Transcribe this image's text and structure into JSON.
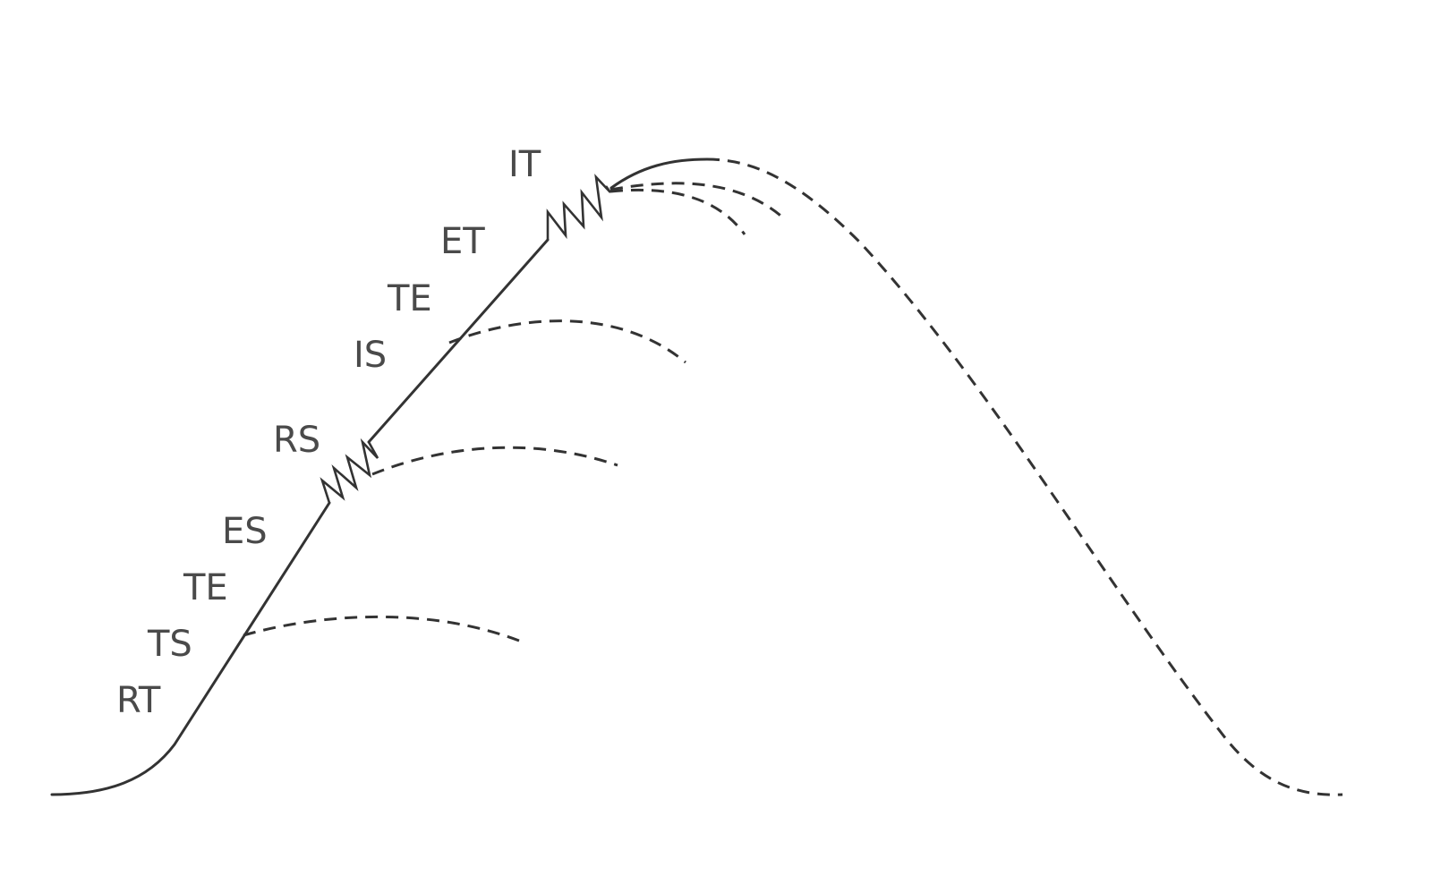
{
  "labels": {
    "rt": "RT",
    "ts": "TS",
    "te_lower": "TE",
    "es": "ES",
    "rs": "RS",
    "is": "IS",
    "te_upper": "TE",
    "et": "ET",
    "it": "IT"
  },
  "colors": {
    "line": "#333333",
    "text": "#4a4a4a",
    "background": "#ffffff"
  }
}
